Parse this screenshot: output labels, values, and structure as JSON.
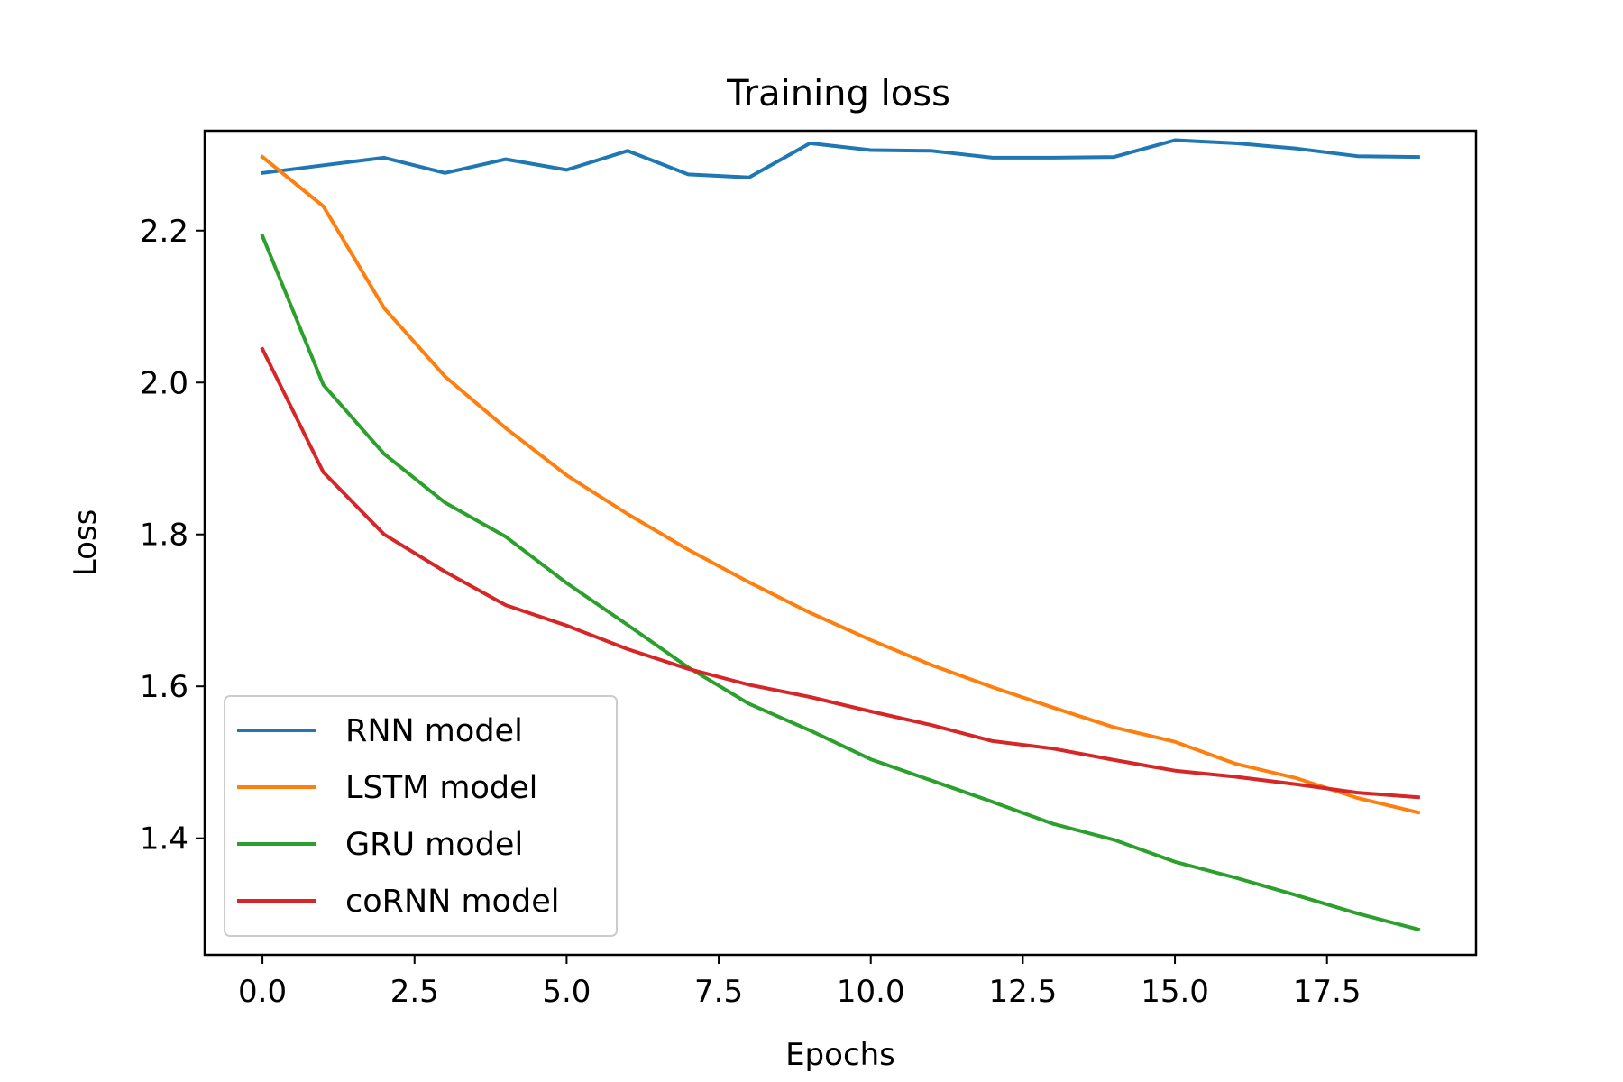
{
  "chart_data": {
    "type": "line",
    "title": "Training loss",
    "xlabel": "Epochs",
    "ylabel": "Loss",
    "xlim": [
      -0.95,
      19.95
    ],
    "ylim": [
      1.2465,
      2.3315
    ],
    "x_ticks": [
      0,
      2.5,
      5,
      7.5,
      10,
      12.5,
      15,
      17.5
    ],
    "x_tick_labels": [
      "0.0",
      "2.5",
      "5.0",
      "7.5",
      "10.0",
      "12.5",
      "15.0",
      "17.5"
    ],
    "y_ticks": [
      1.4,
      1.6,
      1.8,
      2.0,
      2.2
    ],
    "y_tick_labels": [
      "1.4",
      "1.6",
      "1.8",
      "2.0",
      "2.2"
    ],
    "grid": false,
    "legend_position": "lower-left",
    "x": [
      0,
      1,
      2,
      3,
      4,
      5,
      6,
      7,
      8,
      9,
      10,
      11,
      12,
      13,
      14,
      15,
      16,
      17,
      18,
      19
    ],
    "series": [
      {
        "name": "RNN model",
        "color": "#1f77b4",
        "values": [
          2.276,
          2.286,
          2.296,
          2.276,
          2.294,
          2.28,
          2.305,
          2.274,
          2.27,
          2.315,
          2.306,
          2.305,
          2.296,
          2.296,
          2.297,
          2.319,
          2.315,
          2.308,
          2.298,
          2.297
        ]
      },
      {
        "name": "LSTM model",
        "color": "#ff7f0e",
        "values": [
          2.297,
          2.232,
          2.098,
          2.008,
          1.94,
          1.878,
          1.827,
          1.78,
          1.737,
          1.697,
          1.661,
          1.628,
          1.599,
          1.572,
          1.546,
          1.527,
          1.498,
          1.479,
          1.453,
          1.434
        ]
      },
      {
        "name": "GRU model",
        "color": "#2ca02c",
        "values": [
          2.193,
          1.997,
          1.906,
          1.842,
          1.797,
          1.736,
          1.681,
          1.625,
          1.577,
          1.542,
          1.504,
          1.476,
          1.448,
          1.419,
          1.398,
          1.369,
          1.348,
          1.325,
          1.301,
          1.28
        ]
      },
      {
        "name": "coRNN model",
        "color": "#d62728",
        "values": [
          2.044,
          1.882,
          1.8,
          1.751,
          1.707,
          1.68,
          1.649,
          1.623,
          1.602,
          1.586,
          1.567,
          1.549,
          1.528,
          1.518,
          1.503,
          1.489,
          1.481,
          1.471,
          1.46,
          1.454
        ]
      }
    ]
  }
}
